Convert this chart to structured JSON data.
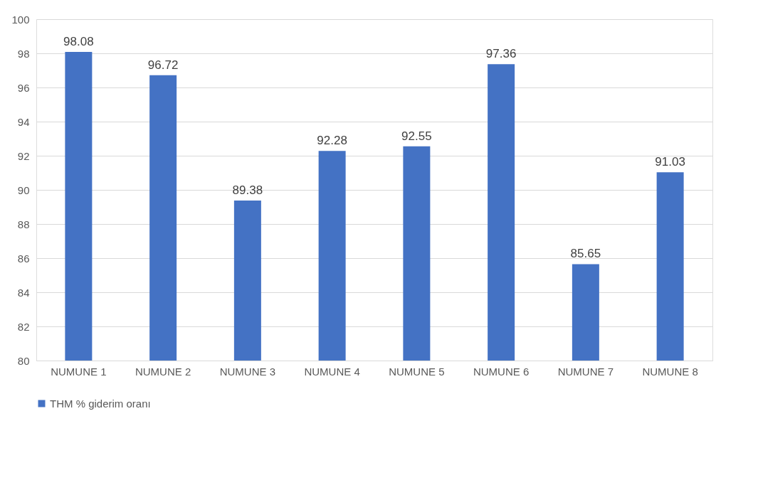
{
  "chart_data": {
    "type": "bar",
    "categories": [
      "NUMUNE 1",
      "NUMUNE 2",
      "NUMUNE 3",
      "NUMUNE 4",
      "NUMUNE 5",
      "NUMUNE 6",
      "NUMUNE 7",
      "NUMUNE 8"
    ],
    "series": [
      {
        "name": "THM % giderim oranı",
        "color": "#4472c4",
        "values": [
          98.08,
          96.72,
          89.38,
          92.28,
          92.55,
          97.36,
          85.65,
          91.03
        ]
      }
    ],
    "ylim": [
      80,
      100
    ],
    "yticks": [
      80,
      82,
      84,
      86,
      88,
      90,
      92,
      94,
      96,
      98,
      100
    ],
    "grid": "y",
    "legend": "bottom",
    "data_labels": true
  }
}
